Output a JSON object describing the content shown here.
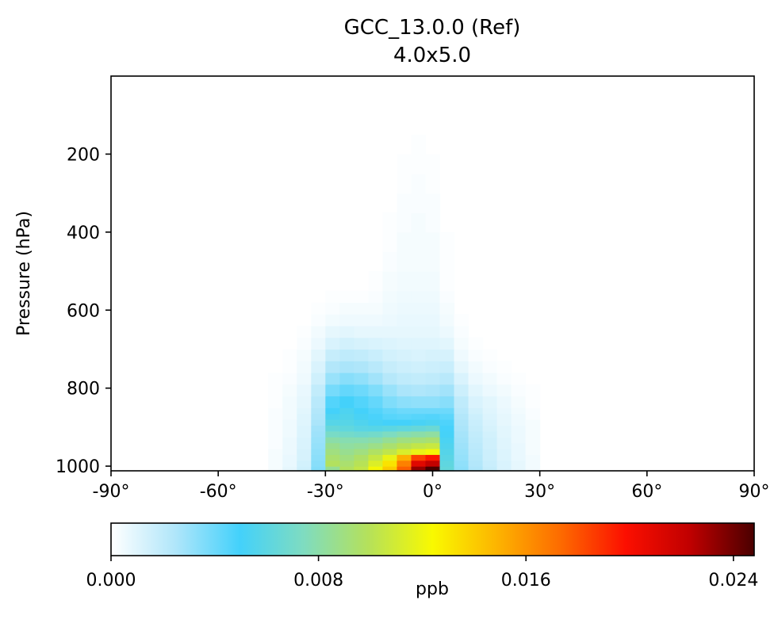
{
  "chart_data": {
    "type": "heatmap",
    "title": "GCC_13.0.0 (Ref)",
    "subtitle": "4.0x5.0",
    "ylabel": "Pressure (hPa)",
    "xlim": [
      -90,
      90
    ],
    "ylim": [
      1012,
      0
    ],
    "x_ticks": [
      -90,
      -60,
      -30,
      0,
      30,
      60,
      90
    ],
    "x_tick_labels": [
      "-90°",
      "-60°",
      "-30°",
      "0°",
      "30°",
      "60°",
      "90°"
    ],
    "y_ticks": [
      200,
      400,
      600,
      800,
      1000
    ],
    "y_tick_labels": [
      "200",
      "400",
      "600",
      "800",
      "1000"
    ],
    "grid": false,
    "colormap": "WhGrYlRd",
    "colormap_stops": [
      "#ffffff",
      "#b0e6fa",
      "#43d1fb",
      "#7fdcc0",
      "#b5e15a",
      "#f9f900",
      "#fdb400",
      "#fd6a00",
      "#fc0f00",
      "#c00000",
      "#4a0000"
    ],
    "colorbar": {
      "label": "ppb",
      "vmin": 0.0,
      "vmax": 0.0248,
      "ticks": [
        0.0,
        0.008,
        0.016,
        0.024
      ],
      "tick_labels": [
        "0.000",
        "0.008",
        "0.016",
        "0.024"
      ]
    },
    "lat_edges": [
      -46,
      -42,
      -38,
      -34,
      -30,
      -26,
      -22,
      -18,
      -14,
      -10,
      -6,
      -2,
      2,
      6,
      10,
      14,
      18,
      22,
      26,
      30
    ],
    "pressure_edges": [
      1012,
      1000,
      985,
      970,
      955,
      940,
      925,
      910,
      895,
      880,
      865,
      850,
      820,
      790,
      760,
      730,
      700,
      670,
      640,
      610,
      580,
      550,
      500,
      450,
      400,
      350,
      300,
      250,
      200,
      150
    ],
    "values": [
      [
        0.0003,
        0.0008,
        0.0015,
        0.0035,
        0.0085,
        0.0098,
        0.0104,
        0.0122,
        0.014,
        0.0176,
        0.0232,
        0.0248,
        0.0063,
        0.0033,
        0.0025,
        0.0018,
        0.0012,
        0.0008,
        0.0004
      ],
      [
        0.0003,
        0.0007,
        0.0014,
        0.0034,
        0.0098,
        0.0094,
        0.01,
        0.0113,
        0.0132,
        0.0166,
        0.021,
        0.0222,
        0.0061,
        0.0032,
        0.0024,
        0.0017,
        0.0012,
        0.0008,
        0.0004
      ],
      [
        0.0003,
        0.0007,
        0.0013,
        0.0033,
        0.0094,
        0.009,
        0.0096,
        0.0105,
        0.0118,
        0.015,
        0.0185,
        0.0196,
        0.0059,
        0.0031,
        0.0023,
        0.0016,
        0.0011,
        0.0007,
        0.0004
      ],
      [
        0.0003,
        0.0006,
        0.0013,
        0.0032,
        0.009,
        0.0086,
        0.009,
        0.0097,
        0.0103,
        0.0112,
        0.0118,
        0.0122,
        0.0057,
        0.003,
        0.0022,
        0.0016,
        0.0011,
        0.0007,
        0.0003
      ],
      [
        0.0002,
        0.0006,
        0.0012,
        0.0031,
        0.0086,
        0.0082,
        0.0084,
        0.0088,
        0.0094,
        0.01,
        0.0104,
        0.0106,
        0.0055,
        0.0029,
        0.0021,
        0.0015,
        0.001,
        0.0007,
        0.0003
      ],
      [
        0.0002,
        0.0006,
        0.0012,
        0.003,
        0.008,
        0.0078,
        0.0078,
        0.008,
        0.0085,
        0.009,
        0.0092,
        0.0094,
        0.0053,
        0.0028,
        0.002,
        0.0015,
        0.001,
        0.0006,
        0.0003
      ],
      [
        0.0002,
        0.0005,
        0.0011,
        0.0029,
        0.0072,
        0.007,
        0.0068,
        0.007,
        0.0074,
        0.0078,
        0.008,
        0.0082,
        0.0051,
        0.0027,
        0.0019,
        0.0014,
        0.0009,
        0.0006,
        0.0003
      ],
      [
        0.0002,
        0.0005,
        0.0011,
        0.0028,
        0.0064,
        0.0062,
        0.0059,
        0.0058,
        0.006,
        0.0062,
        0.0064,
        0.0066,
        0.0049,
        0.0026,
        0.0018,
        0.0013,
        0.0009,
        0.0006,
        0.0003
      ],
      [
        0.0002,
        0.0005,
        0.001,
        0.0026,
        0.0058,
        0.0058,
        0.0055,
        0.0052,
        0.005,
        0.005,
        0.0052,
        0.0054,
        0.0047,
        0.0025,
        0.0017,
        0.0012,
        0.0008,
        0.0005,
        0.0003
      ],
      [
        0.0002,
        0.0004,
        0.001,
        0.0025,
        0.0054,
        0.0056,
        0.0052,
        0.0048,
        0.0045,
        0.0044,
        0.0045,
        0.0046,
        0.0044,
        0.0024,
        0.0016,
        0.0011,
        0.0008,
        0.0005,
        0.0002
      ],
      [
        0.0002,
        0.0004,
        0.0009,
        0.0024,
        0.005,
        0.0054,
        0.005,
        0.0046,
        0.0042,
        0.004,
        0.004,
        0.004,
        0.004,
        0.0022,
        0.0014,
        0.001,
        0.0007,
        0.0004,
        0.0002
      ],
      [
        0.0001,
        0.0004,
        0.0008,
        0.0022,
        0.0046,
        0.005,
        0.0046,
        0.0042,
        0.0036,
        0.0033,
        0.0032,
        0.0032,
        0.0034,
        0.002,
        0.0012,
        0.0009,
        0.0006,
        0.0003,
        0.0001
      ],
      [
        0.0001,
        0.0003,
        0.0007,
        0.0019,
        0.0038,
        0.0042,
        0.004,
        0.0036,
        0.003,
        0.0026,
        0.0025,
        0.0026,
        0.0028,
        0.0016,
        0.0009,
        0.0006,
        0.0004,
        0.0002,
        0.0001
      ],
      [
        0.0001,
        0.0002,
        0.0005,
        0.0015,
        0.003,
        0.0034,
        0.0032,
        0.0028,
        0.0023,
        0.002,
        0.0019,
        0.002,
        0.0022,
        0.0012,
        0.0006,
        0.0004,
        0.0002,
        0.0001,
        0.0
      ],
      [
        0.0,
        0.0001,
        0.0004,
        0.0012,
        0.0024,
        0.0026,
        0.0025,
        0.0022,
        0.0018,
        0.0016,
        0.0015,
        0.0016,
        0.0017,
        0.0008,
        0.0004,
        0.0002,
        0.0001,
        0.0,
        0.0
      ],
      [
        0.0,
        0.0001,
        0.0003,
        0.0009,
        0.0018,
        0.002,
        0.0019,
        0.0017,
        0.0014,
        0.0013,
        0.0012,
        0.0013,
        0.0013,
        0.0005,
        0.0002,
        0.0001,
        0.0,
        0.0,
        0.0
      ],
      [
        0.0,
        0.0,
        0.0002,
        0.0006,
        0.0012,
        0.0014,
        0.0013,
        0.0012,
        0.0011,
        0.001,
        0.001,
        0.001,
        0.0009,
        0.0003,
        0.0001,
        0.0,
        0.0,
        0.0,
        0.0
      ],
      [
        0.0,
        0.0,
        0.0001,
        0.0004,
        0.0008,
        0.0009,
        0.0008,
        0.0008,
        0.0008,
        0.0008,
        0.0008,
        0.0008,
        0.0006,
        0.0002,
        0.0,
        0.0,
        0.0,
        0.0,
        0.0
      ],
      [
        0.0,
        0.0,
        0.0,
        0.0002,
        0.0004,
        0.0005,
        0.0005,
        0.0005,
        0.0006,
        0.0007,
        0.0007,
        0.0007,
        0.0004,
        0.0001,
        0.0,
        0.0,
        0.0,
        0.0,
        0.0
      ],
      [
        0.0,
        0.0,
        0.0,
        0.0001,
        0.0002,
        0.0003,
        0.0003,
        0.0003,
        0.0005,
        0.0006,
        0.0006,
        0.0006,
        0.0003,
        0.0,
        0.0,
        0.0,
        0.0,
        0.0,
        0.0
      ],
      [
        0.0,
        0.0,
        0.0,
        0.0,
        0.0001,
        0.0001,
        0.0001,
        0.0002,
        0.0004,
        0.0005,
        0.0005,
        0.0005,
        0.0002,
        0.0,
        0.0,
        0.0,
        0.0,
        0.0,
        0.0
      ],
      [
        0.0,
        0.0,
        0.0,
        0.0,
        0.0,
        0.0,
        0.0,
        0.0001,
        0.0003,
        0.0004,
        0.0004,
        0.0004,
        0.0001,
        0.0,
        0.0,
        0.0,
        0.0,
        0.0,
        0.0
      ],
      [
        0.0,
        0.0,
        0.0,
        0.0,
        0.0,
        0.0,
        0.0,
        0.0,
        0.0002,
        0.0003,
        0.0003,
        0.0003,
        0.0001,
        0.0,
        0.0,
        0.0,
        0.0,
        0.0,
        0.0
      ],
      [
        0.0,
        0.0,
        0.0,
        0.0,
        0.0,
        0.0,
        0.0,
        0.0,
        0.0001,
        0.0003,
        0.0003,
        0.0003,
        0.0001,
        0.0,
        0.0,
        0.0,
        0.0,
        0.0,
        0.0
      ],
      [
        0.0,
        0.0,
        0.0,
        0.0,
        0.0,
        0.0,
        0.0,
        0.0,
        0.0001,
        0.0002,
        0.0003,
        0.0002,
        0.0,
        0.0,
        0.0,
        0.0,
        0.0,
        0.0,
        0.0
      ],
      [
        0.0,
        0.0,
        0.0,
        0.0,
        0.0,
        0.0,
        0.0,
        0.0,
        0.0,
        0.0002,
        0.0002,
        0.0002,
        0.0,
        0.0,
        0.0,
        0.0,
        0.0,
        0.0,
        0.0
      ],
      [
        0.0,
        0.0,
        0.0,
        0.0,
        0.0,
        0.0,
        0.0,
        0.0,
        0.0,
        0.0001,
        0.0002,
        0.0001,
        0.0,
        0.0,
        0.0,
        0.0,
        0.0,
        0.0,
        0.0
      ],
      [
        0.0,
        0.0,
        0.0,
        0.0,
        0.0,
        0.0,
        0.0,
        0.0,
        0.0,
        0.0001,
        0.0001,
        0.0001,
        0.0,
        0.0,
        0.0,
        0.0,
        0.0,
        0.0,
        0.0
      ],
      [
        0.0,
        0.0,
        0.0,
        0.0,
        0.0,
        0.0,
        0.0,
        0.0,
        0.0,
        0.0,
        0.0001,
        0.0,
        0.0,
        0.0,
        0.0,
        0.0,
        0.0,
        0.0,
        0.0
      ]
    ]
  }
}
